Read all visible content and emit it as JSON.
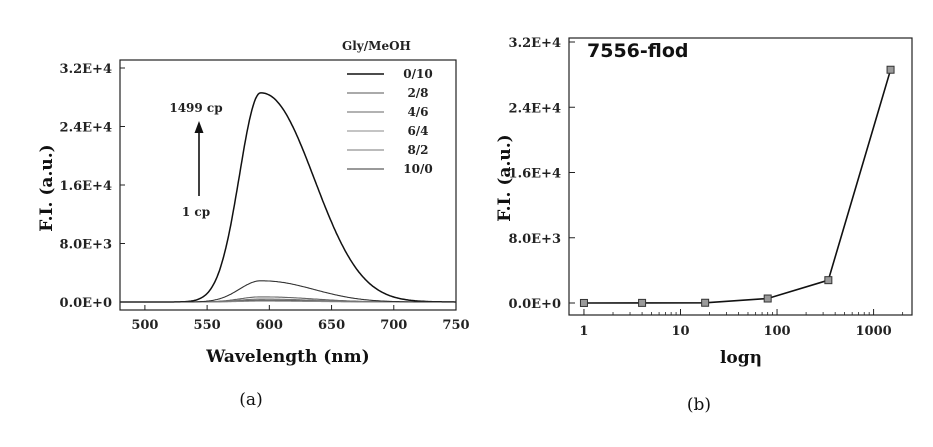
{
  "chart_data": [
    {
      "type": "line",
      "caption": "(a)",
      "xlabel": "Wavelength (nm)",
      "ylabel": "F.I. (a.u.)",
      "xlim": [
        480,
        750
      ],
      "ylim": [
        0,
        32000
      ],
      "x_ticks": [
        500,
        550,
        600,
        650,
        700,
        750
      ],
      "y_ticks": [
        0,
        8000,
        16000,
        24000,
        32000
      ],
      "y_tick_labels": [
        "0.0E+0",
        "8.0E+3",
        "1.6E+4",
        "2.4E+4",
        "3.2E+4"
      ],
      "legend_title": "Gly/MeOH",
      "legend_position": "top-right",
      "series": [
        {
          "name": "0/10",
          "peak_x": 593,
          "peak_y": 28600,
          "color": "#111111"
        },
        {
          "name": "2/8",
          "peak_x": 593,
          "peak_y": 240,
          "color": "#555555"
        },
        {
          "name": "4/6",
          "peak_x": 593,
          "peak_y": 700,
          "color": "#666666"
        },
        {
          "name": "6/4",
          "peak_x": 593,
          "peak_y": 120,
          "color": "#888888"
        },
        {
          "name": "8/2",
          "peak_x": 593,
          "peak_y": 400,
          "color": "#777777"
        },
        {
          "name": "10/0",
          "peak_x": 593,
          "peak_y": 2900,
          "color": "#333333"
        }
      ],
      "annotations": {
        "top": "1499 cp",
        "bottom": "1 cp"
      }
    },
    {
      "type": "line",
      "caption": "(b)",
      "title": "7556-flod",
      "xlabel": "logη",
      "ylabel": "F.I. (a.u.)",
      "x_scale": "log",
      "xlim": [
        0.7,
        2500
      ],
      "ylim": [
        -1200,
        32000
      ],
      "x_ticks": [
        1,
        10,
        100,
        1000
      ],
      "y_ticks": [
        0,
        8000,
        16000,
        24000,
        32000
      ],
      "y_tick_labels": [
        "0.0E+0",
        "8.0E+3",
        "1.6E+4",
        "2.4E+4",
        "3.2E+4"
      ],
      "x": [
        1,
        4,
        18,
        80,
        340,
        1499
      ],
      "y": [
        5,
        15,
        30,
        550,
        2800,
        28600
      ],
      "marker": "square"
    }
  ]
}
